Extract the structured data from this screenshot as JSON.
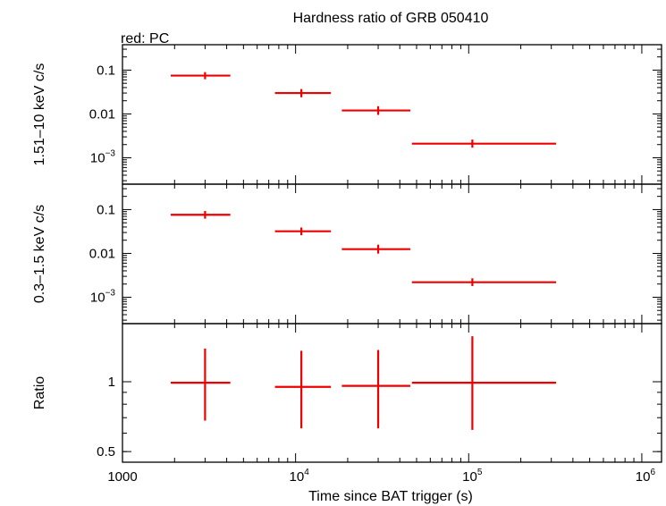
{
  "chart_data": {
    "type": "scatter",
    "title": "Hardness ratio of GRB 050410",
    "subtitle": "red: PC",
    "xlabel": "Time since BAT trigger (s)",
    "xscale": "log",
    "xlim": [
      1000,
      1300000
    ],
    "x_tick_labels": [
      {
        "value": 1000,
        "base": "1000",
        "exp": ""
      },
      {
        "value": 10000,
        "base": "10",
        "exp": "4"
      },
      {
        "value": 100000,
        "base": "10",
        "exp": "5"
      },
      {
        "value": 1000000,
        "base": "10",
        "exp": "6"
      }
    ],
    "colors": {
      "series": "#ee0000",
      "axis": "#000000"
    },
    "panels": [
      {
        "id": "hard",
        "ylabel": "1.51–10 keV c/s",
        "yscale": "log",
        "ylim": [
          0.00025,
          0.38
        ],
        "y_tick_labels": [
          {
            "value": 0.1,
            "base": "0.1",
            "exp": ""
          },
          {
            "value": 0.01,
            "base": "0.01",
            "exp": ""
          },
          {
            "value": 0.001,
            "base": "10",
            "exp": "−3"
          }
        ],
        "points": [
          {
            "x": 3000,
            "xlo": 1900,
            "xhi": 4200,
            "y": 0.075,
            "ylo": 0.062,
            "yhi": 0.09
          },
          {
            "x": 10800,
            "xlo": 7600,
            "xhi": 16000,
            "y": 0.03,
            "ylo": 0.024,
            "yhi": 0.037
          },
          {
            "x": 30000,
            "xlo": 18500,
            "xhi": 46000,
            "y": 0.012,
            "ylo": 0.0095,
            "yhi": 0.015
          },
          {
            "x": 105000,
            "xlo": 47000,
            "xhi": 320000,
            "y": 0.0021,
            "ylo": 0.0017,
            "yhi": 0.0026
          }
        ]
      },
      {
        "id": "soft",
        "ylabel": "0.3–1.5 keV c/s",
        "yscale": "log",
        "ylim": [
          0.00025,
          0.38
        ],
        "y_tick_labels": [
          {
            "value": 0.1,
            "base": "0.1",
            "exp": ""
          },
          {
            "value": 0.01,
            "base": "0.01",
            "exp": ""
          },
          {
            "value": 0.001,
            "base": "10",
            "exp": "−3"
          }
        ],
        "points": [
          {
            "x": 3000,
            "xlo": 1900,
            "xhi": 4200,
            "y": 0.076,
            "ylo": 0.062,
            "yhi": 0.093
          },
          {
            "x": 10800,
            "xlo": 7600,
            "xhi": 16000,
            "y": 0.032,
            "ylo": 0.026,
            "yhi": 0.039
          },
          {
            "x": 30000,
            "xlo": 18500,
            "xhi": 46000,
            "y": 0.0125,
            "ylo": 0.0099,
            "yhi": 0.0158
          },
          {
            "x": 105000,
            "xlo": 47000,
            "xhi": 320000,
            "y": 0.0022,
            "ylo": 0.0018,
            "yhi": 0.0027
          }
        ]
      },
      {
        "id": "ratio",
        "ylabel": "Ratio",
        "yscale": "log",
        "ylim": [
          0.45,
          1.78
        ],
        "y_tick_labels": [
          {
            "value": 1,
            "base": "1",
            "exp": ""
          },
          {
            "value": 0.5,
            "base": "0.5",
            "exp": ""
          }
        ],
        "points": [
          {
            "x": 3000,
            "xlo": 1900,
            "xhi": 4200,
            "y": 0.99,
            "ylo": 0.68,
            "yhi": 1.39
          },
          {
            "x": 10800,
            "xlo": 7600,
            "xhi": 16000,
            "y": 0.95,
            "ylo": 0.63,
            "yhi": 1.36
          },
          {
            "x": 30000,
            "xlo": 18500,
            "xhi": 46000,
            "y": 0.96,
            "ylo": 0.63,
            "yhi": 1.37
          },
          {
            "x": 105000,
            "xlo": 47000,
            "xhi": 320000,
            "y": 0.99,
            "ylo": 0.62,
            "yhi": 1.57
          }
        ]
      }
    ]
  }
}
